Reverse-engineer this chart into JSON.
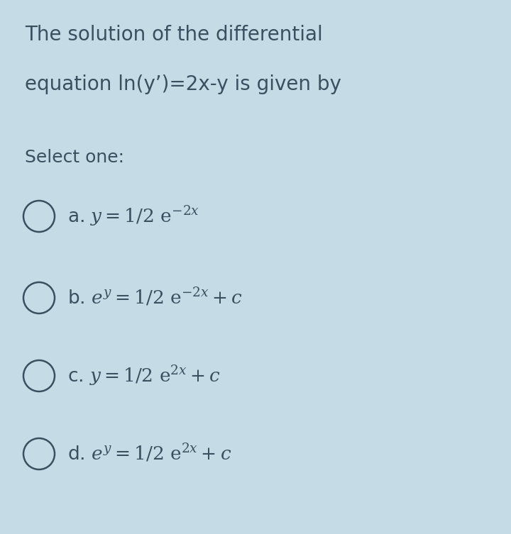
{
  "background_color": "#c5dce6",
  "title_line1": "The solution of the differential",
  "title_line2": "equation ln(y’)=2x-y is given by",
  "select_one": "Select one:",
  "text_color": "#3a5060",
  "circle_color": "#3a5060",
  "title_fontsize": 20,
  "select_fontsize": 18,
  "option_fontsize": 19,
  "circle_linewidth": 1.8,
  "option_texts": [
    "a. y=1/2 e$^{-2x}$",
    "b. e$^{y}$ =1/2 e$^{-2x}$ + c",
    "c. y=1/2 e$^{2x}$ +c",
    "d. e$^{y}$ =1/2 e$^{2x}$ +c"
  ],
  "option_math_texts": [
    "a. $y=1/2\\ \\mathrm{e}^{-2x}$",
    "b. $e^{y}=1/2\\ \\mathrm{e}^{-2x} + c$",
    "c. $y=1/2\\ \\mathrm{e}^{2x}+c$",
    "d. $e^{y}=1/2\\ \\mathrm{e}^{2x}+c$"
  ]
}
